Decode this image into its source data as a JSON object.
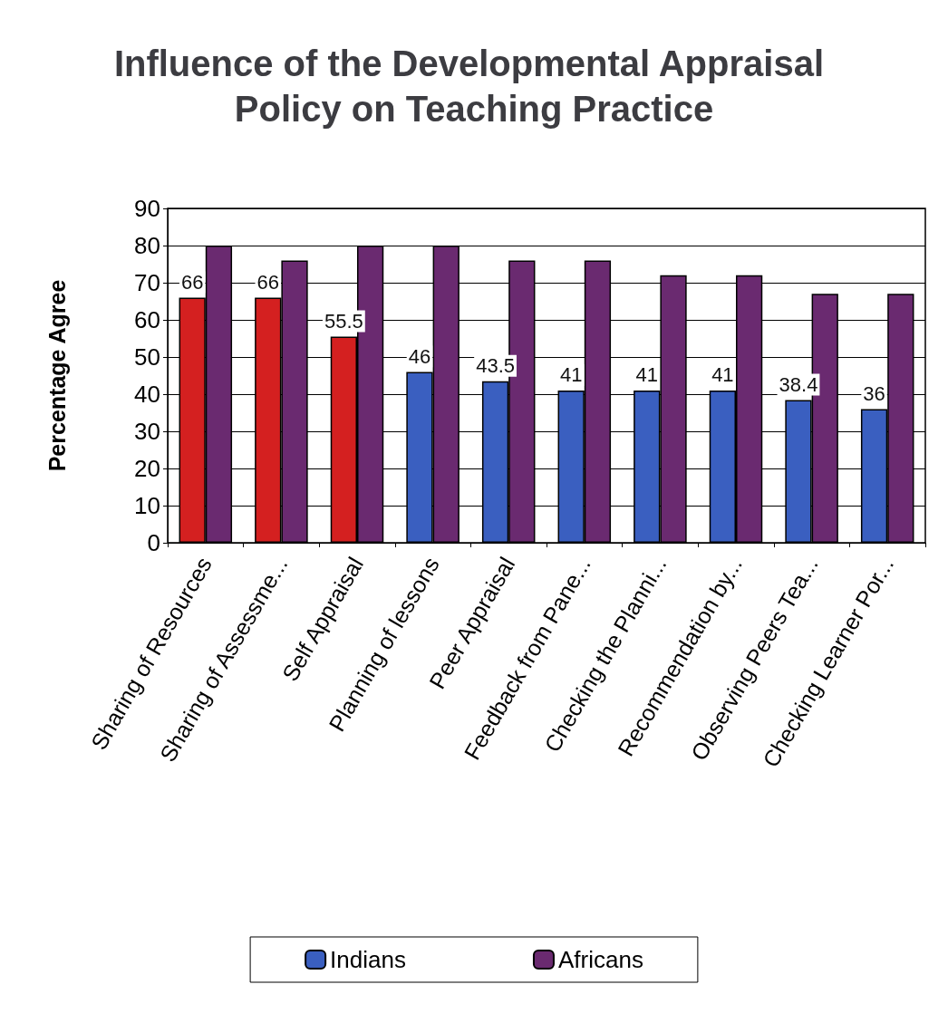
{
  "chart_data": {
    "type": "bar",
    "title": "Influence of the Developmental Appraisal Policy on Teaching Practice",
    "ylabel": "Percentage Agree",
    "categories": [
      "Sharing of Resources",
      "Sharing of Assessme...",
      "Self Appraisal",
      "Planning of lessons",
      "Peer Appraisal",
      "Feedback from Pane...",
      "Checking the Planni...",
      "Recommendation by...",
      "Observing Peers Tea...",
      "Checking Learner Por..."
    ],
    "series": [
      {
        "name": "Indians",
        "color": "#3a5fc0",
        "colors": [
          "#d42020",
          "#d42020",
          "#d42020",
          "#3a5fc0",
          "#3a5fc0",
          "#3a5fc0",
          "#3a5fc0",
          "#3a5fc0",
          "#3a5fc0",
          "#3a5fc0"
        ],
        "values": [
          66,
          66,
          55.5,
          46,
          43.5,
          41,
          41,
          41,
          38.4,
          36
        ],
        "value_labels": [
          "66",
          "66",
          "55.5",
          "46",
          "43.5",
          "41",
          "41",
          "41",
          "38.4",
          "36"
        ]
      },
      {
        "name": "Africans",
        "color": "#6a2a70",
        "values": [
          80,
          76,
          80,
          80,
          76,
          76,
          72,
          72,
          67,
          67
        ]
      }
    ],
    "ylim": [
      0,
      90
    ],
    "yticks": [
      0,
      10,
      20,
      30,
      40,
      50,
      60,
      70,
      80,
      90
    ],
    "grid": "y",
    "legend": "bottom"
  }
}
